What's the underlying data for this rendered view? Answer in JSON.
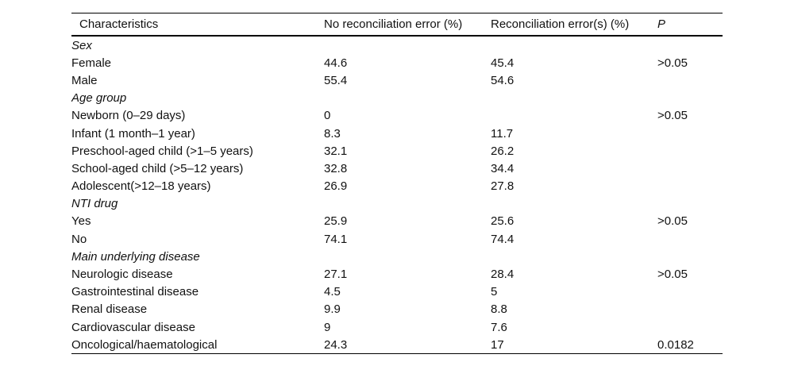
{
  "chart_data": {
    "type": "table",
    "columns": [
      "Characteristics",
      "No reconciliation error (%)",
      "Reconciliation error(s) (%)",
      "P"
    ],
    "rows": [
      {
        "type": "group",
        "label": "Sex"
      },
      {
        "type": "item",
        "label": "Female",
        "no_error": "44.6",
        "error": "45.4",
        "p": ">0.05"
      },
      {
        "type": "item",
        "label": "Male",
        "no_error": "55.4",
        "error": "54.6",
        "p": ""
      },
      {
        "type": "group",
        "label": "Age group"
      },
      {
        "type": "item",
        "label": "Newborn (0–29 days)",
        "no_error": "0",
        "error": "",
        "p": ">0.05"
      },
      {
        "type": "item",
        "label": "Infant (1 month–1 year)",
        "no_error": "8.3",
        "error": "11.7",
        "p": ""
      },
      {
        "type": "item",
        "label": "Preschool-aged child (>1–5 years)",
        "no_error": "32.1",
        "error": "26.2",
        "p": ""
      },
      {
        "type": "item",
        "label": "School-aged child (>5–12 years)",
        "no_error": "32.8",
        "error": "34.4",
        "p": ""
      },
      {
        "type": "item",
        "label": "Adolescent(>12–18 years)",
        "no_error": "26.9",
        "error": "27.8",
        "p": ""
      },
      {
        "type": "group",
        "label": "NTI drug"
      },
      {
        "type": "item",
        "label": "Yes",
        "no_error": "25.9",
        "error": "25.6",
        "p": ">0.05"
      },
      {
        "type": "item",
        "label": "No",
        "no_error": "74.1",
        "error": "74.4",
        "p": ""
      },
      {
        "type": "group",
        "label": "Main underlying disease"
      },
      {
        "type": "item",
        "label": "Neurologic disease",
        "no_error": "27.1",
        "error": "28.4",
        "p": ">0.05"
      },
      {
        "type": "item",
        "label": "Gastrointestinal disease",
        "no_error": "4.5",
        "error": "5",
        "p": ""
      },
      {
        "type": "item",
        "label": "Renal disease",
        "no_error": "9.9",
        "error": "8.8",
        "p": ""
      },
      {
        "type": "item",
        "label": "Cardiovascular disease",
        "no_error": "9",
        "error": "7.6",
        "p": ""
      },
      {
        "type": "item",
        "label": "Oncological/haematological",
        "no_error": "24.3",
        "error": "17",
        "p": "0.0182"
      }
    ],
    "colors": {
      "text": "#111111",
      "rule": "#000000",
      "background": "#ffffff"
    }
  }
}
